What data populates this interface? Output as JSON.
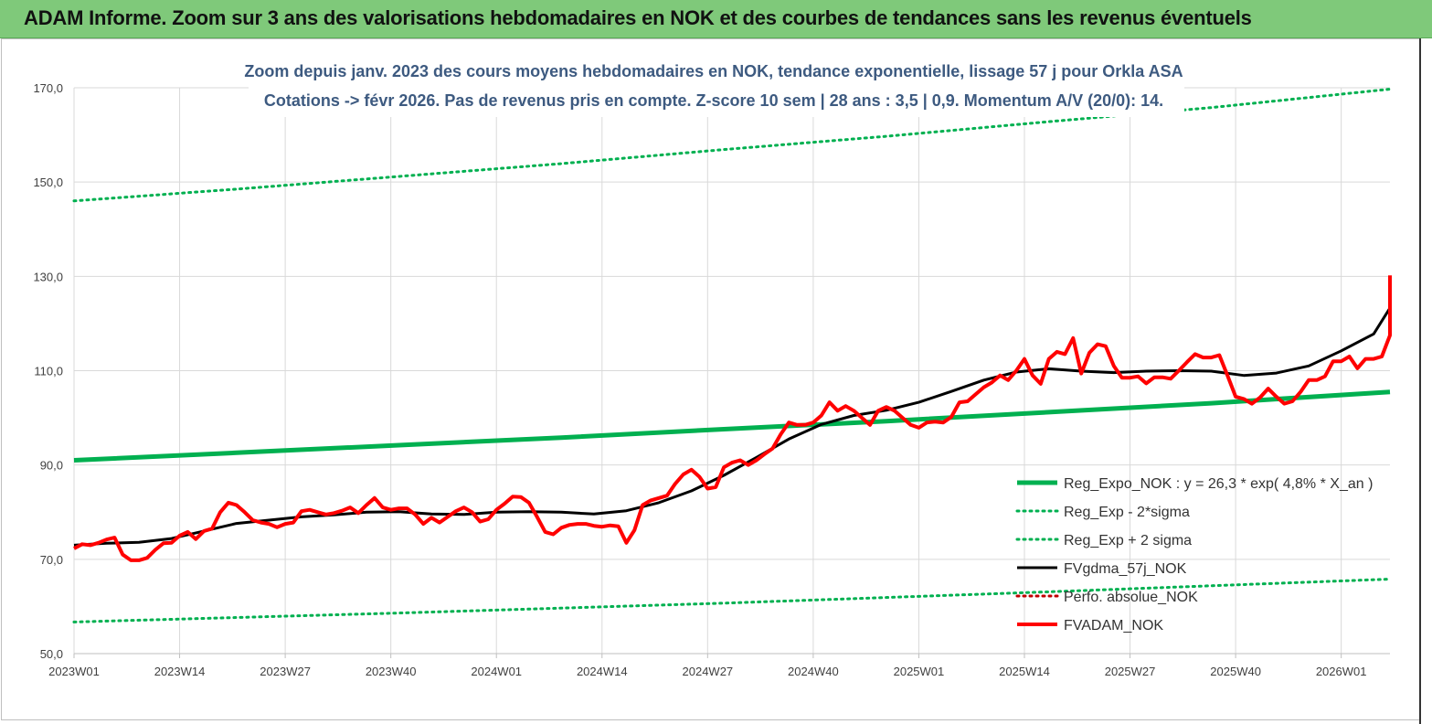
{
  "header": {
    "title": "ADAM Informe. Zoom sur 3 ans des valorisations hebdomadaires en NOK et des courbes de tendances sans les revenus éventuels"
  },
  "chart_data": {
    "type": "line",
    "subtitle_line1": "Zoom depuis janv. 2023 des cours moyens hebdomadaires en NOK, tendance exponentielle, lissage 57 j pour Orkla ASA",
    "subtitle_line2": "Cotations -> févr 2026.  Pas de revenus pris en compte. Z-score 10 sem  | 28 ans : 3,5 | 0,9. Momentum A/V (20/0): 14.",
    "ylim": [
      50,
      170
    ],
    "yticks": [
      "50,0",
      "70,0",
      "90,0",
      "110,0",
      "130,0",
      "150,0",
      "170,0"
    ],
    "x_range": [
      0,
      162
    ],
    "xticks": [
      {
        "label": "2023W01",
        "x": 0
      },
      {
        "label": "2023W14",
        "x": 13
      },
      {
        "label": "2023W27",
        "x": 26
      },
      {
        "label": "2023W40",
        "x": 39
      },
      {
        "label": "2024W01",
        "x": 52
      },
      {
        "label": "2024W14",
        "x": 65
      },
      {
        "label": "2024W27",
        "x": 78
      },
      {
        "label": "2024W40",
        "x": 91
      },
      {
        "label": "2025W01",
        "x": 104
      },
      {
        "label": "2025W14",
        "x": 117
      },
      {
        "label": "2025W27",
        "x": 130
      },
      {
        "label": "2025W40",
        "x": 143
      },
      {
        "label": "2026W01",
        "x": 156
      }
    ],
    "grid": true,
    "legend_position": "bottom-right",
    "series": [
      {
        "name": "Reg_Expo_NOK : y = 26,3 * exp( 4,8% *  X_an )",
        "color": "#00b050",
        "style": "solid-thick",
        "x": [
          0,
          20,
          40,
          60,
          80,
          100,
          120,
          140,
          165
        ],
        "values": [
          91.0,
          92.6,
          94.2,
          95.8,
          97.6,
          99.3,
          101.2,
          103.1,
          105.5
        ]
      },
      {
        "name": "Reg_Exp - 2*sigma",
        "color": "#00b050",
        "style": "dotted",
        "x": [
          0,
          40,
          80,
          120,
          165
        ],
        "values": [
          56.7,
          58.6,
          60.7,
          63.1,
          65.8
        ]
      },
      {
        "name": "Reg_Exp + 2 sigma",
        "color": "#00b050",
        "style": "dotted",
        "x": [
          0,
          20,
          40,
          60,
          80,
          100,
          120,
          140,
          165
        ],
        "values": [
          146.0,
          148.5,
          151.2,
          153.9,
          156.9,
          159.7,
          162.8,
          165.8,
          169.7
        ]
      },
      {
        "name": "FVgdma_57j_NOK",
        "color": "#000000",
        "style": "solid",
        "x": [
          0,
          4,
          8,
          12,
          16,
          20,
          24,
          28,
          32,
          36,
          40,
          44,
          48,
          52,
          56,
          60,
          64,
          68,
          72,
          76,
          80,
          84,
          88,
          92,
          96,
          100,
          104,
          108,
          112,
          116,
          120,
          124,
          128,
          132,
          136,
          140,
          144,
          148,
          152,
          156,
          160,
          165
        ],
        "values": [
          73.0,
          73.4,
          73.6,
          74.4,
          76.0,
          77.6,
          78.3,
          79.0,
          79.4,
          80.0,
          80.1,
          79.6,
          79.5,
          80.0,
          80.1,
          80.0,
          79.6,
          80.3,
          82.0,
          84.5,
          87.8,
          91.6,
          95.5,
          98.6,
          100.5,
          101.6,
          103.3,
          105.6,
          108.0,
          109.7,
          110.4,
          109.9,
          109.6,
          109.9,
          110.0,
          109.9,
          109.0,
          109.5,
          111.0,
          114.2,
          117.8,
          123.3
        ]
      },
      {
        "name": "Perfo. absolue_NOK",
        "color": "#c00000",
        "style": "dotted",
        "x": [],
        "values": []
      },
      {
        "name": "FVADAM_NOK",
        "color": "#ff0000",
        "style": "solid-thick",
        "x": [
          0,
          1,
          2,
          3,
          4,
          5,
          6,
          7,
          8,
          9,
          10,
          11,
          12,
          13,
          14,
          15,
          16,
          17,
          18,
          19,
          20,
          21,
          22,
          23,
          24,
          25,
          26,
          27,
          28,
          29,
          30,
          31,
          32,
          33,
          34,
          35,
          36,
          37,
          38,
          39,
          40,
          41,
          42,
          43,
          44,
          45,
          46,
          47,
          48,
          49,
          50,
          51,
          52,
          53,
          54,
          55,
          56,
          57,
          58,
          59,
          60,
          61,
          62,
          63,
          64,
          65,
          66,
          67,
          68,
          69,
          70,
          71,
          72,
          73,
          74,
          75,
          76,
          77,
          78,
          79,
          80,
          81,
          82,
          83,
          84,
          85,
          86,
          87,
          88,
          89,
          90,
          91,
          92,
          93,
          94,
          95,
          96,
          97,
          98,
          99,
          100,
          101,
          102,
          103,
          104,
          105,
          106,
          107,
          108,
          109,
          110,
          111,
          112,
          113,
          114,
          115,
          116,
          117,
          118,
          119,
          120,
          121,
          122,
          123,
          124,
          125,
          126,
          127,
          128,
          129,
          130,
          131,
          132,
          133,
          134,
          135,
          136,
          137,
          138,
          139,
          140,
          141,
          142,
          143,
          144,
          145,
          146,
          147,
          148,
          149,
          150,
          151,
          152,
          153,
          154,
          155,
          156,
          157,
          158,
          159,
          160,
          161,
          162,
          163,
          164,
          165
        ],
        "values": [
          72.3,
          73.2,
          73.0,
          73.5,
          74.2,
          74.6,
          71.0,
          69.8,
          69.8,
          70.3,
          72.0,
          73.4,
          73.5,
          75.0,
          75.8,
          74.3,
          76.0,
          76.5,
          80.0,
          82.0,
          81.5,
          80.0,
          78.3,
          77.8,
          77.5,
          76.8,
          77.5,
          77.8,
          80.2,
          80.5,
          80.0,
          79.5,
          79.8,
          80.3,
          81.0,
          79.8,
          81.5,
          83.0,
          81.0,
          80.5,
          80.8,
          80.8,
          79.5,
          77.5,
          78.8,
          77.8,
          79.0,
          80.2,
          81.0,
          80.0,
          78.0,
          78.5,
          80.5,
          81.8,
          83.3,
          83.2,
          82.0,
          79.0,
          75.8,
          75.3,
          76.7,
          77.3,
          77.5,
          77.5,
          77.1,
          76.9,
          77.2,
          77.0,
          73.5,
          76.2,
          81.5,
          82.5,
          83.0,
          83.5,
          86.0,
          88.0,
          89.0,
          87.5,
          85.0,
          85.3,
          89.5,
          90.5,
          91.0,
          90.0,
          91.0,
          92.3,
          93.5,
          96.5,
          99.0,
          98.5,
          98.5,
          99.0,
          100.5,
          103.3,
          101.5,
          102.5,
          101.5,
          100.0,
          98.5,
          101.5,
          102.3,
          101.5,
          100.0,
          98.5,
          97.9,
          99.0,
          99.2,
          99.0,
          100.2,
          103.3,
          103.5,
          105.0,
          106.5,
          107.5,
          109.0,
          108.0,
          110.0,
          112.5,
          109.0,
          107.2,
          112.5,
          114.0,
          113.5,
          116.9,
          109.4,
          113.8,
          115.6,
          115.2,
          111.0,
          108.5,
          108.5,
          108.8,
          107.3,
          108.6,
          108.6,
          108.3,
          110.0,
          111.8,
          113.5,
          112.8,
          112.8,
          113.3,
          109.0,
          104.5,
          104.0,
          103.0,
          104.3,
          106.2,
          104.5,
          103.0,
          103.5,
          105.5,
          108.0,
          108.0,
          108.8,
          112.0,
          112.0,
          113.0,
          110.5,
          112.5,
          112.5,
          113.0,
          117.5,
          124.0,
          128.5,
          130.2
        ]
      }
    ]
  }
}
